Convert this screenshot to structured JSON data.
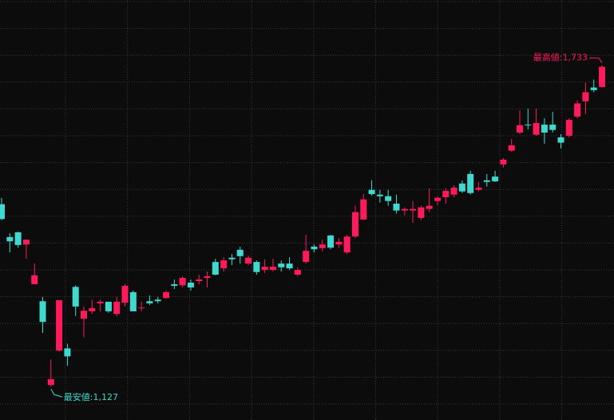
{
  "chart_data": {
    "type": "candlestick",
    "up_color": "#ff1a5c",
    "down_color": "#3fd9d0",
    "ylim": [
      1064,
      1856
    ],
    "open": [
      1471,
      1409,
      1418,
      1395,
      1320,
      1288,
      1130,
      1195,
      1199,
      1315,
      1255,
      1269,
      1284,
      1287,
      1264,
      1285,
      1305,
      1275,
      1288,
      1291,
      1294,
      1320,
      1318,
      1323,
      1326,
      1332,
      1362,
      1350,
      1370,
      1385,
      1359,
      1362,
      1347,
      1347,
      1359,
      1359,
      1338,
      1362,
      1391,
      1388,
      1412,
      1395,
      1380,
      1410,
      1442,
      1498,
      1489,
      1486,
      1472,
      1459,
      1459,
      1445,
      1462,
      1477,
      1484,
      1489,
      1510,
      1528,
      1498,
      1516,
      1523,
      1546,
      1572,
      1606,
      1621,
      1602,
      1621,
      1621,
      1597,
      1600,
      1636,
      1665,
      1691,
      1692
    ],
    "high": [
      1483,
      1416,
      1419,
      1404,
      1359,
      1296,
      1178,
      1290,
      1208,
      1318,
      1278,
      1291,
      1291,
      1287,
      1296,
      1320,
      1308,
      1287,
      1299,
      1296,
      1308,
      1329,
      1335,
      1329,
      1338,
      1344,
      1368,
      1371,
      1377,
      1391,
      1374,
      1365,
      1367,
      1368,
      1365,
      1371,
      1352,
      1413,
      1395,
      1404,
      1413,
      1407,
      1413,
      1468,
      1490,
      1516,
      1498,
      1498,
      1489,
      1465,
      1477,
      1468,
      1501,
      1486,
      1501,
      1507,
      1516,
      1534,
      1513,
      1528,
      1534,
      1558,
      1594,
      1648,
      1651,
      1651,
      1633,
      1645,
      1603,
      1633,
      1667,
      1700,
      1706,
      1733
    ],
    "low": [
      1441,
      1380,
      1389,
      1368,
      1320,
      1228,
      1127,
      1193,
      1166,
      1260,
      1220,
      1264,
      1269,
      1266,
      1260,
      1278,
      1269,
      1269,
      1281,
      1284,
      1293,
      1311,
      1314,
      1308,
      1320,
      1314,
      1337,
      1344,
      1356,
      1359,
      1356,
      1338,
      1341,
      1344,
      1344,
      1347,
      1335,
      1359,
      1380,
      1382,
      1386,
      1389,
      1377,
      1407,
      1441,
      1487,
      1474,
      1468,
      1453,
      1450,
      1436,
      1441,
      1456,
      1469,
      1472,
      1484,
      1492,
      1489,
      1495,
      1504,
      1513,
      1540,
      1570,
      1603,
      1612,
      1600,
      1585,
      1606,
      1576,
      1597,
      1633,
      1641,
      1682,
      1691
    ],
    "close": [
      1443,
      1401,
      1394,
      1404,
      1337,
      1249,
      1141,
      1290,
      1184,
      1278,
      1270,
      1275,
      1287,
      1269,
      1287,
      1317,
      1269,
      1276,
      1284,
      1288,
      1305,
      1317,
      1332,
      1314,
      1329,
      1335,
      1338,
      1365,
      1367,
      1373,
      1370,
      1343,
      1353,
      1353,
      1352,
      1350,
      1347,
      1383,
      1386,
      1395,
      1389,
      1400,
      1410,
      1456,
      1480,
      1490,
      1486,
      1477,
      1459,
      1462,
      1462,
      1465,
      1468,
      1483,
      1496,
      1502,
      1495,
      1492,
      1502,
      1513,
      1514,
      1555,
      1582,
      1620,
      1620,
      1624,
      1606,
      1611,
      1587,
      1630,
      1661,
      1682,
      1686,
      1730
    ],
    "low_label": {
      "label": "最安値:1,127",
      "value": 1127
    },
    "high_label": {
      "label": "最高値:1,733",
      "value": 1733
    }
  }
}
